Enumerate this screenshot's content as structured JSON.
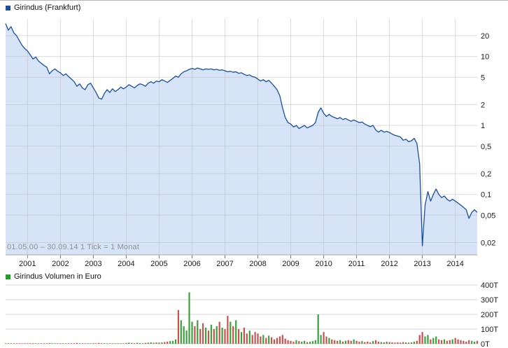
{
  "price_legend": {
    "title": "Girindus (Frankfurt)",
    "color": "#1a4f9e"
  },
  "volume_legend": {
    "title": "Girindus Volumen in Euro",
    "color": "#1fa11f"
  },
  "watermark": "01.05.00 – 30.09.14   1 Tick = 1 Monat",
  "chart_data": [
    {
      "type": "area",
      "title": "Girindus (Frankfurt)",
      "x_start": "05.2000",
      "x_end": "09.2014",
      "x_step": "1 Monat",
      "y_scale": "log",
      "y_ticks": [
        20,
        10,
        5,
        2,
        1,
        0.5,
        0.2,
        0.1,
        0.05,
        0.02
      ],
      "y_tick_labels": [
        "20",
        "10",
        "5",
        "2",
        "1",
        "0,5",
        "0,2",
        "0,1",
        "0,05",
        "0,02"
      ],
      "x_tick_labels": [
        "2001",
        "2002",
        "2003",
        "2004",
        "2005",
        "2006",
        "2007",
        "2008",
        "2009",
        "2010",
        "2011",
        "2012",
        "2013",
        "2014"
      ],
      "line_color": "#1a4f9e",
      "fill_color": "#d7e3f7",
      "grid": true,
      "legend_position": "top-left",
      "values": [
        30,
        24,
        27,
        22,
        20,
        17,
        14.5,
        13,
        12,
        10.5,
        9.2,
        9.8,
        8.6,
        8.0,
        7.4,
        7.0,
        5.6,
        6.2,
        6.6,
        6.1,
        5.8,
        5.3,
        5.6,
        5.1,
        4.7,
        4.3,
        3.7,
        4.0,
        3.5,
        3.3,
        3.9,
        4.1,
        3.5,
        3.0,
        2.5,
        2.4,
        2.9,
        3.3,
        3.0,
        3.4,
        3.1,
        3.3,
        3.6,
        3.4,
        3.6,
        3.9,
        3.7,
        3.5,
        3.8,
        4.0,
        3.9,
        3.7,
        4.1,
        4.3,
        4.1,
        4.4,
        4.3,
        4.6,
        4.4,
        4.2,
        4.5,
        4.8,
        5.2,
        5.0,
        5.6,
        6.0,
        6.2,
        6.5,
        6.7,
        6.5,
        6.8,
        6.6,
        6.4,
        6.6,
        6.5,
        6.6,
        6.4,
        6.5,
        6.3,
        6.4,
        6.2,
        6.0,
        6.1,
        5.9,
        6.0,
        5.7,
        5.8,
        5.5,
        5.3,
        5.4,
        5.1,
        5.0,
        4.7,
        4.4,
        4.6,
        4.3,
        4.5,
        4.1,
        3.7,
        3.3,
        2.7,
        1.8,
        1.3,
        1.1,
        1.05,
        0.95,
        1.0,
        0.9,
        0.95,
        1.0,
        0.92,
        0.96,
        1.0,
        1.1,
        1.55,
        1.8,
        1.5,
        1.35,
        1.45,
        1.35,
        1.3,
        1.25,
        1.3,
        1.22,
        1.26,
        1.2,
        1.15,
        1.2,
        1.15,
        1.1,
        1.12,
        1.05,
        1.0,
        0.96,
        1.0,
        0.86,
        0.8,
        0.85,
        0.8,
        0.82,
        0.79,
        0.75,
        0.72,
        0.7,
        0.68,
        0.61,
        0.63,
        0.58,
        0.6,
        0.65,
        0.55,
        0.28,
        0.018,
        0.07,
        0.11,
        0.08,
        0.1,
        0.12,
        0.1,
        0.09,
        0.095,
        0.085,
        0.08,
        0.085,
        0.08,
        0.075,
        0.07,
        0.065,
        0.06,
        0.045,
        0.055,
        0.06,
        0.055
      ]
    },
    {
      "type": "bar",
      "title": "Girindus Volumen in Euro",
      "unit": "T = Tausend Euro",
      "y_ticks": [
        400,
        300,
        200,
        100,
        0
      ],
      "y_tick_labels": [
        "400T",
        "300T",
        "200T",
        "100T",
        "0T"
      ],
      "up_color": "#3aa23a",
      "down_color": "#c9524e",
      "ylim": [
        0,
        400
      ],
      "values": [
        2,
        1,
        1,
        3,
        2,
        1,
        1,
        2,
        3,
        2,
        4,
        2,
        3,
        2,
        1,
        2,
        5,
        3,
        2,
        2,
        3,
        4,
        2,
        3,
        2,
        4,
        6,
        3,
        2,
        3,
        2,
        2,
        4,
        3,
        6,
        4,
        3,
        2,
        3,
        2,
        3,
        4,
        2,
        3,
        5,
        8,
        6,
        4,
        7,
        5,
        4,
        6,
        8,
        10,
        7,
        9,
        8,
        10,
        12,
        15,
        18,
        20,
        30,
        230,
        160,
        120,
        90,
        350,
        150,
        120,
        160,
        100,
        140,
        110,
        90,
        130,
        100,
        120,
        150,
        110,
        100,
        190,
        150,
        120,
        160,
        100,
        80,
        110,
        70,
        90,
        60,
        80,
        70,
        50,
        60,
        40,
        55,
        45,
        30,
        40,
        50,
        60,
        35,
        25,
        20,
        15,
        25,
        18,
        15,
        20,
        12,
        15,
        18,
        25,
        200,
        60,
        80,
        50,
        40,
        30,
        25,
        20,
        25,
        15,
        20,
        25,
        20,
        30,
        20,
        15,
        18,
        12,
        15,
        10,
        18,
        25,
        15,
        12,
        10,
        15,
        12,
        10,
        8,
        10,
        8,
        12,
        10,
        8,
        10,
        15,
        20,
        60,
        80,
        50,
        60,
        30,
        40,
        50,
        30,
        25,
        30,
        20,
        25,
        30,
        40,
        30,
        25,
        20,
        15,
        25,
        20,
        15,
        20
      ]
    }
  ]
}
